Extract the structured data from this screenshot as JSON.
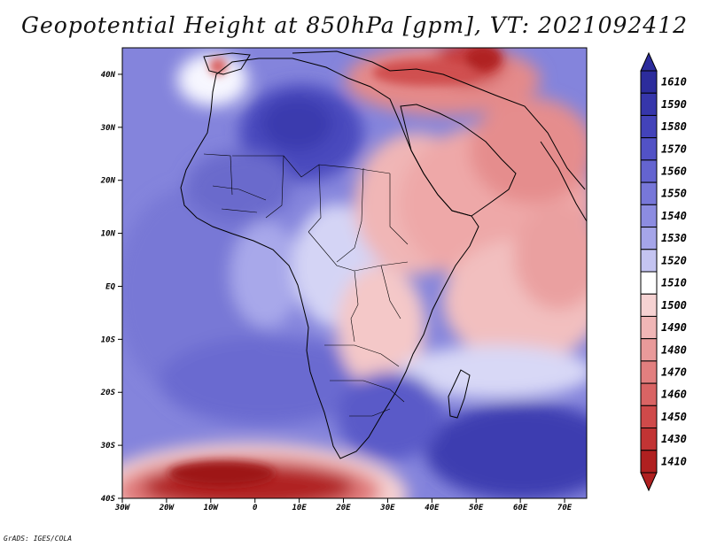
{
  "title": "Geopotential Height at 850hPa [gpm], VT: 2021092412",
  "credit": "GrADS: IGES/COLA",
  "map": {
    "lat_labels": [
      {
        "lat": 40,
        "label": "40N"
      },
      {
        "lat": 30,
        "label": "30N"
      },
      {
        "lat": 20,
        "label": "20N"
      },
      {
        "lat": 10,
        "label": "10N"
      },
      {
        "lat": 0,
        "label": "EQ"
      },
      {
        "lat": -10,
        "label": "10S"
      },
      {
        "lat": -20,
        "label": "20S"
      },
      {
        "lat": -30,
        "label": "30S"
      },
      {
        "lat": -40,
        "label": "40S"
      }
    ],
    "lon_labels": [
      {
        "lon": -30,
        "label": "30W"
      },
      {
        "lon": -20,
        "label": "20W"
      },
      {
        "lon": -10,
        "label": "10W"
      },
      {
        "lon": 0,
        "label": "0"
      },
      {
        "lon": 10,
        "label": "10E"
      },
      {
        "lon": 20,
        "label": "20E"
      },
      {
        "lon": 30,
        "label": "30E"
      },
      {
        "lon": 40,
        "label": "40E"
      },
      {
        "lon": 50,
        "label": "50E"
      },
      {
        "lon": 60,
        "label": "60E"
      },
      {
        "lon": 70,
        "label": "70E"
      }
    ]
  },
  "colorbar": {
    "levels": [
      {
        "label": "1610",
        "color": "#2c2c9c"
      },
      {
        "label": "1590",
        "color": "#3636ab"
      },
      {
        "label": "1580",
        "color": "#4343ba"
      },
      {
        "label": "1570",
        "color": "#5252c6"
      },
      {
        "label": "1560",
        "color": "#6464d0"
      },
      {
        "label": "1550",
        "color": "#7777d9"
      },
      {
        "label": "1540",
        "color": "#8c8ce1"
      },
      {
        "label": "1530",
        "color": "#a5a5e9"
      },
      {
        "label": "1520",
        "color": "#c4c4f1"
      },
      {
        "label": "1510",
        "color": "#ffffff"
      },
      {
        "label": "1500",
        "color": "#f6d2d2"
      },
      {
        "label": "1490",
        "color": "#f0b6b6"
      },
      {
        "label": "1480",
        "color": "#e99a9a"
      },
      {
        "label": "1470",
        "color": "#e27f7f"
      },
      {
        "label": "1460",
        "color": "#d96464"
      },
      {
        "label": "1450",
        "color": "#cf4a4a"
      },
      {
        "label": "1430",
        "color": "#c23434"
      },
      {
        "label": "1410",
        "color": "#b02020"
      }
    ]
  }
}
